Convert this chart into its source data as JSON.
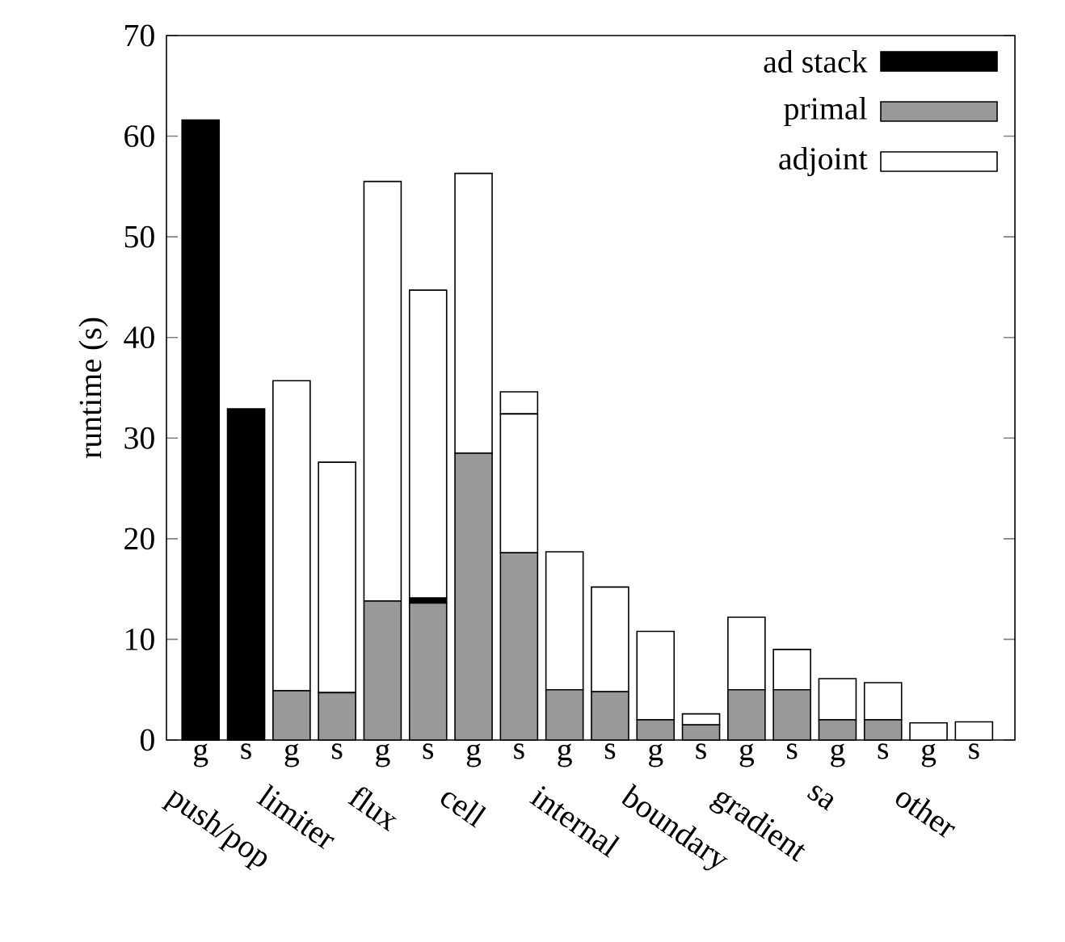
{
  "chart_data": {
    "type": "bar",
    "stacked": true,
    "ylabel": "runtime (s)",
    "ylim": [
      0,
      70
    ],
    "yticks": [
      0,
      10,
      20,
      30,
      40,
      50,
      60,
      70
    ],
    "legend": "top right",
    "grid": false,
    "categories": [
      "g",
      "s",
      "g",
      "s",
      "g",
      "s",
      "g",
      "s",
      "g",
      "s",
      "g",
      "s",
      "g",
      "s",
      "g",
      "s",
      "g",
      "s"
    ],
    "annotations": [
      "push/pop",
      "limiter",
      "flux",
      "cell",
      "internal",
      "boundary",
      "gradient",
      "sa",
      "other"
    ],
    "series": [
      {
        "name": "primal",
        "color": "#999999",
        "values": [
          null,
          null,
          4.9,
          4.7,
          13.8,
          13.6,
          28.5,
          18.6,
          5.0,
          4.8,
          2.0,
          1.5,
          5.0,
          5.0,
          2.0,
          2.0,
          null,
          null
        ]
      },
      {
        "name": "ad stack",
        "color": "#000000",
        "values": [
          61.6,
          32.9,
          null,
          null,
          null,
          0.5,
          null,
          null,
          null,
          null,
          null,
          null,
          null,
          null,
          null,
          null,
          null,
          null
        ]
      },
      {
        "name": "adjoint",
        "color": "#ffffff",
        "values": [
          null,
          null,
          30.8,
          22.9,
          41.7,
          30.6,
          27.8,
          13.8,
          13.7,
          10.4,
          8.8,
          1.1,
          7.2,
          4.0,
          4.1,
          3.7,
          1.7,
          1.8
        ]
      },
      {
        "color": "#ffffff",
        "values": [
          null,
          null,
          null,
          null,
          null,
          null,
          null,
          2.2,
          null,
          null,
          null,
          null,
          null,
          null,
          null,
          null,
          null,
          null
        ]
      }
    ]
  }
}
